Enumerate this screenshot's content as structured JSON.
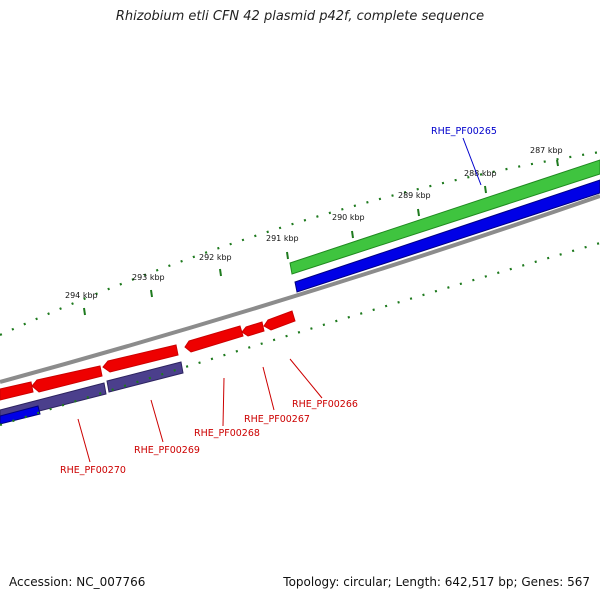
{
  "title": "Rhizobium etli CFN 42 plasmid p42f, complete sequence",
  "footer": {
    "accession": "Accession: NC_007766",
    "summary": "Topology: circular; Length: 642,517 bp; Genes: 567"
  },
  "colors": {
    "backbone": "#8c8c8c",
    "tick": "#1e7a1e",
    "green_track": "#3fc43f",
    "blue_track": "#0000e6",
    "purple_track": "#4b3f8c",
    "red_gene": "#ee0000",
    "label_red": "#cc0000",
    "label_blue": "#0000cc"
  },
  "ticks": [
    {
      "label": "287 kbp"
    },
    {
      "label": "288 kbp"
    },
    {
      "label": "289 kbp"
    },
    {
      "label": "290 kbp"
    },
    {
      "label": "291 kbp"
    },
    {
      "label": "292 kbp"
    },
    {
      "label": "293 kbp"
    },
    {
      "label": "294 kbp"
    }
  ],
  "genes": [
    {
      "id": "RHE_PF00265",
      "color": "blue"
    },
    {
      "id": "RHE_PF00266",
      "color": "red"
    },
    {
      "id": "RHE_PF00267",
      "color": "red"
    },
    {
      "id": "RHE_PF00268",
      "color": "red"
    },
    {
      "id": "RHE_PF00269",
      "color": "red"
    },
    {
      "id": "RHE_PF00270",
      "color": "red"
    }
  ]
}
